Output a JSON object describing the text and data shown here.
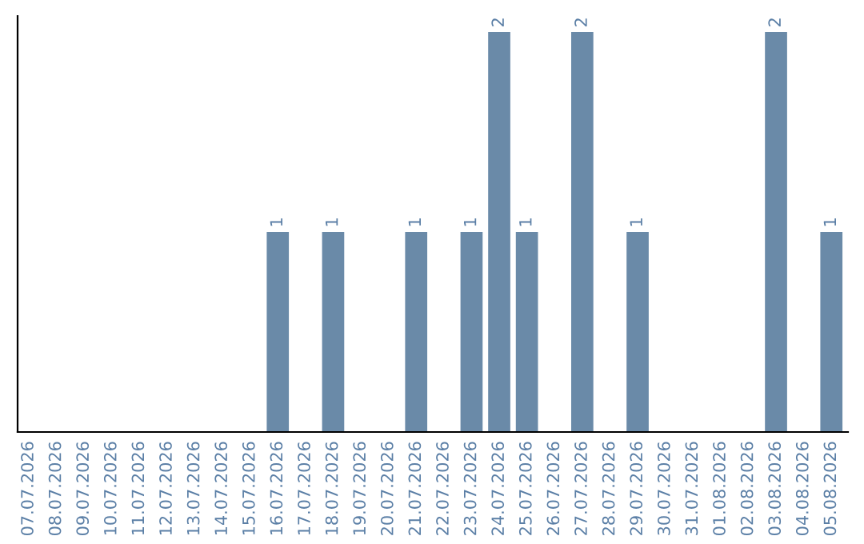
{
  "chart_data": {
    "type": "bar",
    "categories": [
      "07.07.2026",
      "08.07.2026",
      "09.07.2026",
      "10.07.2026",
      "11.07.2026",
      "12.07.2026",
      "13.07.2026",
      "14.07.2026",
      "15.07.2026",
      "16.07.2026",
      "17.07.2026",
      "18.07.2026",
      "19.07.2026",
      "20.07.2026",
      "21.07.2026",
      "22.07.2026",
      "23.07.2026",
      "24.07.2026",
      "25.07.2026",
      "26.07.2026",
      "27.07.2026",
      "28.07.2026",
      "29.07.2026",
      "30.07.2026",
      "31.07.2026",
      "01.08.2026",
      "02.08.2026",
      "03.08.2026",
      "04.08.2026",
      "05.08.2026"
    ],
    "values": [
      0,
      0,
      0,
      0,
      0,
      0,
      0,
      0,
      0,
      1,
      0,
      1,
      0,
      0,
      1,
      0,
      1,
      2,
      1,
      0,
      2,
      0,
      1,
      0,
      0,
      0,
      0,
      2,
      0,
      1
    ],
    "value_labels": [
      null,
      null,
      null,
      null,
      null,
      null,
      null,
      null,
      null,
      "1",
      null,
      "1",
      null,
      null,
      "1",
      null,
      "1",
      "2",
      "1",
      null,
      "2",
      null,
      "1",
      null,
      null,
      null,
      null,
      "2",
      null,
      "1"
    ],
    "color": "#6a8aa8",
    "ylim": [
      0,
      2.08
    ],
    "tick_labels": "x",
    "grid": false,
    "legend": false
  }
}
